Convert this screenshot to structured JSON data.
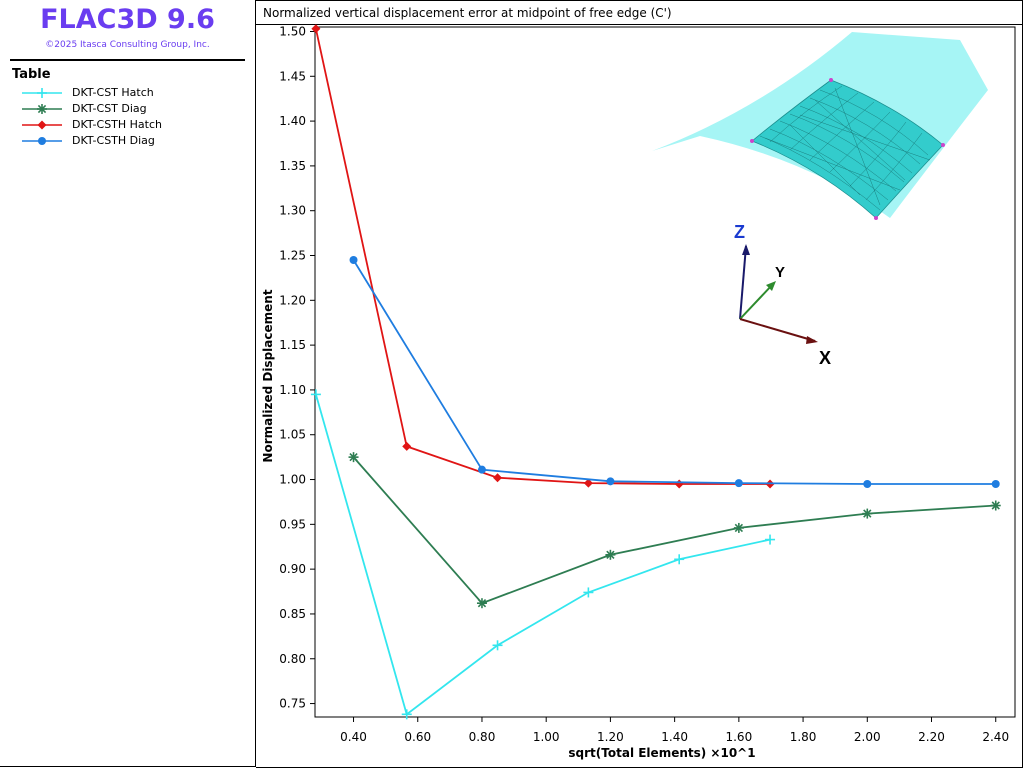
{
  "app": {
    "title": "FLAC3D 9.6",
    "copyright": "©2025 Itasca Consulting Group, Inc.",
    "legend_heading": "Table"
  },
  "colors": {
    "brand": "#6a3df0",
    "cst_hatch": "#33e6ee",
    "cst_diag": "#2e7d52",
    "csth_hatch": "#e01515",
    "csth_diag": "#1f7de0",
    "mesh_fill": "#a6f5f5",
    "mesh_patch": "#33cccc"
  },
  "axes_labels": {
    "z": "Z",
    "y": "Y",
    "x": "X"
  },
  "chart_data": {
    "type": "line",
    "title": "Normalized vertical displacement error at midpoint of free edge (C')",
    "xlabel": "sqrt(Total Elements)  ×10^1",
    "ylabel": "Normalized Displacement",
    "xlim": [
      0.28,
      2.46
    ],
    "ylim": [
      0.735,
      1.505
    ],
    "x_ticks": [
      "0.40",
      "0.60",
      "0.80",
      "1.00",
      "1.20",
      "1.40",
      "1.60",
      "1.80",
      "2.00",
      "2.20",
      "2.40"
    ],
    "y_ticks": [
      "0.75",
      "0.80",
      "0.85",
      "0.90",
      "0.95",
      "1.00",
      "1.05",
      "1.10",
      "1.15",
      "1.20",
      "1.25",
      "1.30",
      "1.35",
      "1.40",
      "1.45",
      "1.50"
    ],
    "grid": false,
    "legend_position": "left panel",
    "series": [
      {
        "name": "DKT-CST Hatch",
        "color": "#33e6ee",
        "marker": "plus",
        "x": [
          0.2828,
          0.5657,
          0.8485,
          1.1314,
          1.4142,
          1.6971
        ],
        "y": [
          1.095,
          0.738,
          0.815,
          0.874,
          0.911,
          0.933
        ]
      },
      {
        "name": "DKT-CST Diag",
        "color": "#2e7d52",
        "marker": "star",
        "x": [
          0.4,
          0.8,
          1.2,
          1.6,
          2.0,
          2.4
        ],
        "y": [
          1.025,
          0.862,
          0.916,
          0.946,
          0.962,
          0.971
        ]
      },
      {
        "name": "DKT-CSTH Hatch",
        "color": "#e01515",
        "marker": "diamond",
        "x": [
          0.2828,
          0.5657,
          0.8485,
          1.1314,
          1.4142,
          1.6971
        ],
        "y": [
          1.503,
          1.037,
          1.002,
          0.996,
          0.995,
          0.995
        ]
      },
      {
        "name": "DKT-CSTH Diag",
        "color": "#1f7de0",
        "marker": "circle",
        "x": [
          0.4,
          0.8,
          1.2,
          1.6,
          2.0,
          2.4
        ],
        "y": [
          1.245,
          1.011,
          0.998,
          0.996,
          0.995,
          0.995
        ]
      }
    ]
  }
}
